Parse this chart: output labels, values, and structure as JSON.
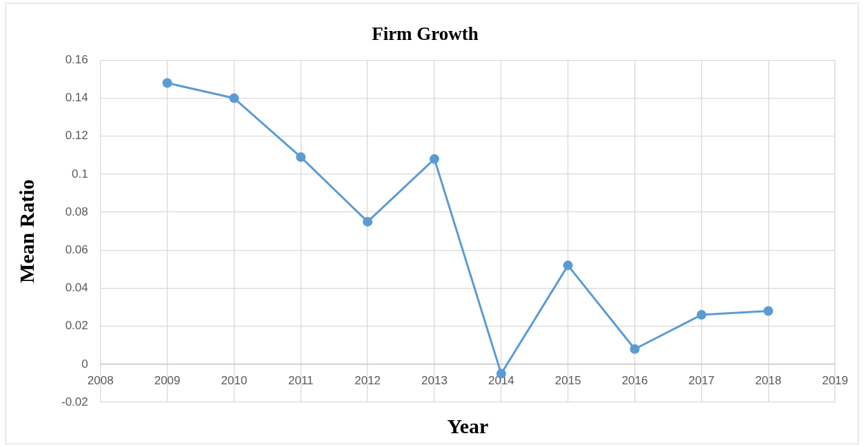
{
  "chart_data": {
    "type": "line",
    "title": "Firm Growth",
    "xlabel": "Year",
    "ylabel": "Mean Ratio",
    "x": [
      2009,
      2010,
      2011,
      2012,
      2013,
      2014,
      2015,
      2016,
      2017,
      2018
    ],
    "series": [
      {
        "color": "#5b9bd5",
        "values": [
          0.148,
          0.14,
          0.109,
          0.075,
          0.108,
          -0.005,
          0.052,
          0.008,
          0.026,
          0.028
        ]
      }
    ],
    "xlim": [
      2008,
      2019
    ],
    "xticks": [
      2008,
      2009,
      2010,
      2011,
      2012,
      2013,
      2014,
      2015,
      2016,
      2017,
      2018,
      2019
    ],
    "ylim": [
      -0.02,
      0.16
    ],
    "yticks": [
      -0.02,
      0,
      0.02,
      0.04,
      0.06,
      0.08,
      0.1,
      0.12,
      0.14,
      0.16
    ],
    "grid": true,
    "legend": false,
    "marker": "circle",
    "line_style": "solid"
  }
}
